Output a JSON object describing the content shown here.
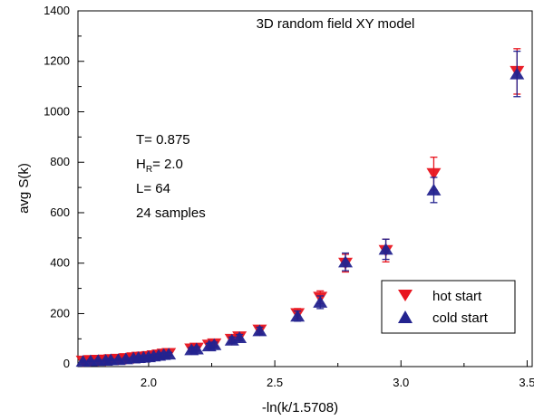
{
  "chart_data": {
    "type": "scatter",
    "title": "3D random field XY model",
    "xlabel": "-ln(k/1.5708)",
    "ylabel": "avg S(k)",
    "xlim": [
      1.72,
      3.52
    ],
    "ylim": [
      -10,
      1400
    ],
    "x_ticks": [
      2.0,
      2.5,
      3.0,
      3.5
    ],
    "x_tick_labels": [
      "2.0",
      "2.5",
      "3.0",
      "3.5"
    ],
    "y_ticks": [
      0,
      200,
      400,
      600,
      800,
      1000,
      1200,
      1400
    ],
    "y_tick_labels": [
      "0",
      "200",
      "400",
      "600",
      "800",
      "1000",
      "1200",
      "1400"
    ],
    "grid": false,
    "legend_position": "bottom-right",
    "annotation": {
      "line1": "T= 0.875",
      "line2_main": "H",
      "line2_sub": "R",
      "line2_rest": "= 2.0",
      "line3": "L= 64",
      "line4": "24 samples"
    },
    "series": [
      {
        "name": "hot start",
        "marker": "triangle-down",
        "color": "#e8141e",
        "x": [
          1.74,
          1.77,
          1.8,
          1.83,
          1.85,
          1.88,
          1.91,
          1.94,
          1.96,
          1.98,
          2.0,
          2.02,
          2.04,
          2.06,
          2.08,
          2.17,
          2.19,
          2.24,
          2.26,
          2.33,
          2.36,
          2.44,
          2.59,
          2.68,
          2.78,
          2.94,
          3.13,
          3.46
        ],
        "y": [
          12,
          14,
          15,
          16,
          18,
          19,
          22,
          25,
          27,
          28,
          30,
          33,
          36,
          40,
          42,
          60,
          63,
          75,
          80,
          98,
          108,
          135,
          200,
          265,
          400,
          450,
          755,
          1160
        ],
        "error": [
          3,
          3,
          3,
          3,
          3,
          3,
          4,
          4,
          4,
          4,
          5,
          5,
          5,
          6,
          6,
          8,
          8,
          10,
          10,
          12,
          12,
          14,
          20,
          25,
          35,
          45,
          65,
          90
        ]
      },
      {
        "name": "cold start",
        "marker": "triangle-up",
        "color": "#23238f",
        "x": [
          1.74,
          1.77,
          1.8,
          1.83,
          1.85,
          1.88,
          1.91,
          1.94,
          1.96,
          1.98,
          2.0,
          2.02,
          2.04,
          2.06,
          2.08,
          2.17,
          2.19,
          2.24,
          2.26,
          2.33,
          2.36,
          2.44,
          2.59,
          2.68,
          2.78,
          2.94,
          3.13,
          3.46
        ],
        "y": [
          11,
          13,
          14,
          15,
          17,
          18,
          21,
          24,
          26,
          27,
          29,
          32,
          35,
          38,
          40,
          57,
          60,
          72,
          77,
          95,
          105,
          132,
          190,
          245,
          405,
          455,
          690,
          1150
        ],
        "error": [
          3,
          3,
          3,
          3,
          3,
          3,
          4,
          4,
          4,
          4,
          5,
          5,
          5,
          6,
          6,
          8,
          8,
          10,
          10,
          12,
          12,
          14,
          20,
          25,
          35,
          40,
          50,
          90
        ]
      }
    ]
  }
}
